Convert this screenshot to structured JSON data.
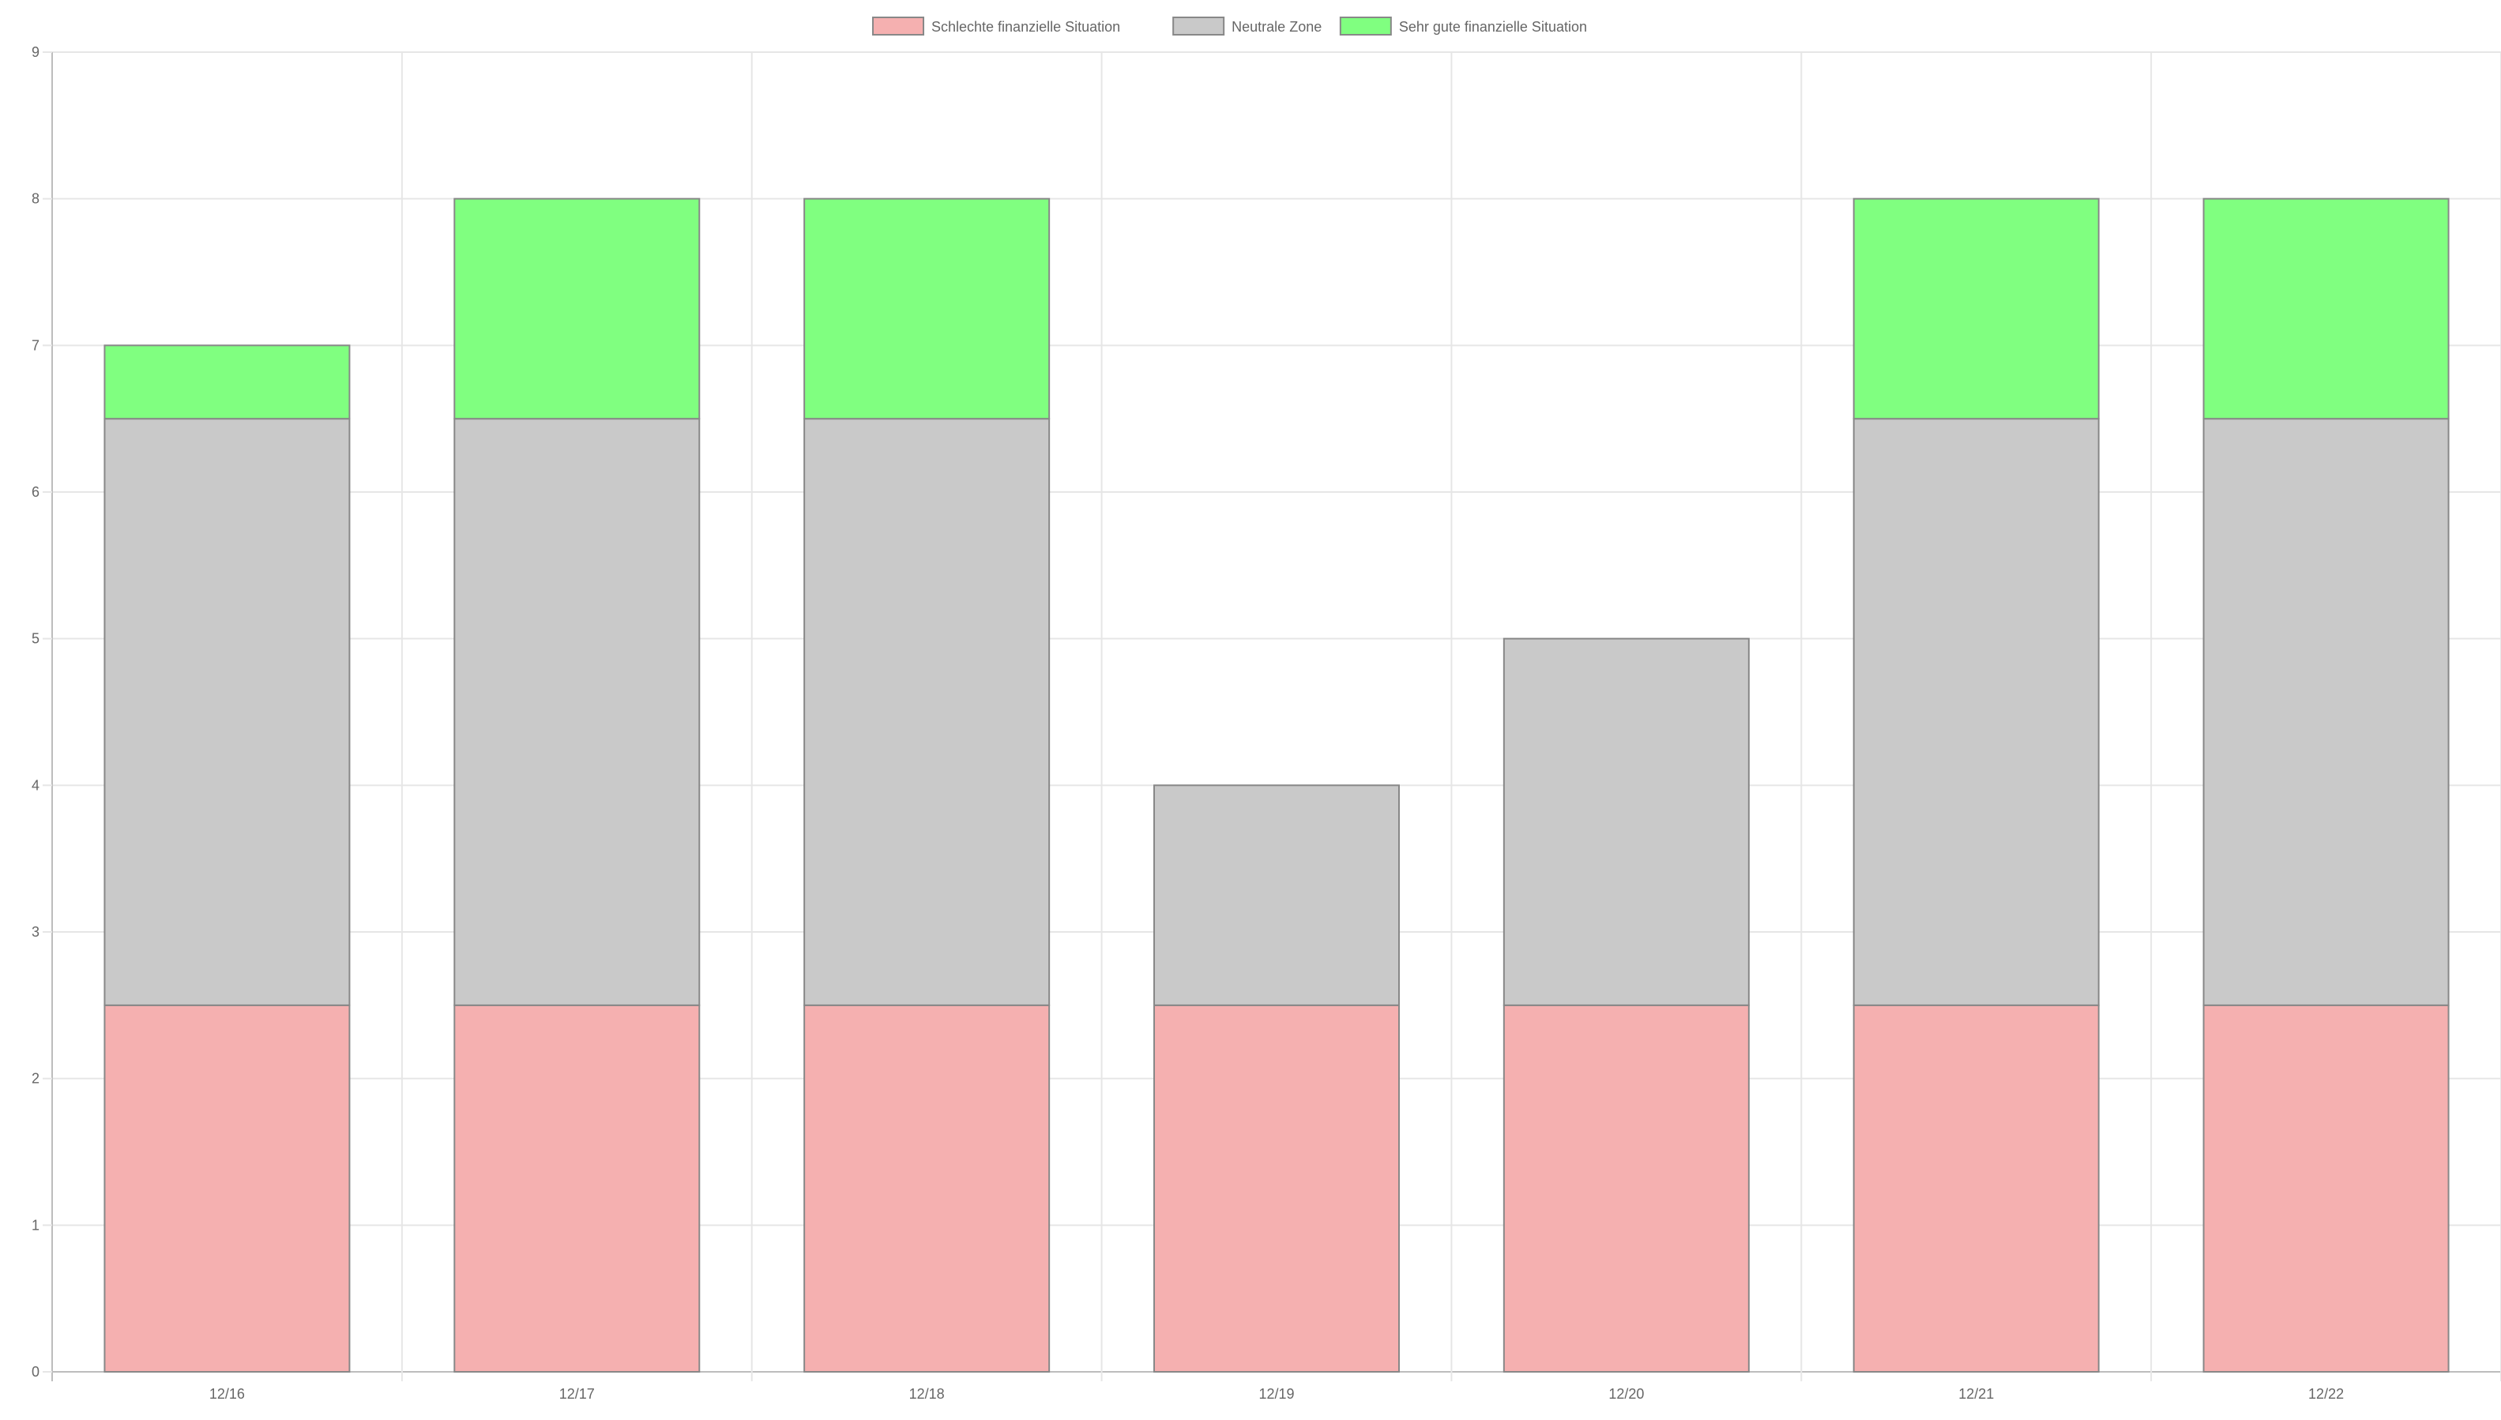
{
  "chart_data": {
    "type": "bar",
    "stacked": true,
    "categories": [
      "12/16",
      "12/17",
      "12/18",
      "12/19",
      "12/20",
      "12/21",
      "12/22"
    ],
    "series": [
      {
        "name": "Schlechte finanzielle Situation",
        "values": [
          2.5,
          2.5,
          2.5,
          2.5,
          2.5,
          2.5,
          2.5
        ],
        "color": "#f5b0b0"
      },
      {
        "name": "Neutrale Zone",
        "values": [
          4,
          4,
          4,
          1.5,
          2.5,
          4,
          4
        ],
        "color": "#c9c9c9"
      },
      {
        "name": "Sehr gute finanzielle Situation",
        "values": [
          0.5,
          1.5,
          1.5,
          0,
          0,
          1.5,
          1.5
        ],
        "color": "#80ff80"
      }
    ],
    "ylim": [
      0,
      9
    ],
    "yticks": [
      "0",
      "1",
      "2",
      "3",
      "4",
      "5",
      "6",
      "7",
      "8",
      "9"
    ],
    "grid": true,
    "legend_position": "top-center",
    "colors": {
      "bar_border": "#888888",
      "grid": "#e6e6e6",
      "axis": "#bdbdbd",
      "tick_text": "#666666"
    }
  }
}
